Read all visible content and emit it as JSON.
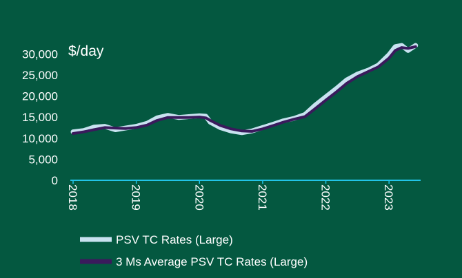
{
  "colors": {
    "background": "#045840",
    "axis_line": "#22c4e8",
    "series_primary": "#c8e2f0",
    "series_average": "#3a1a5c",
    "text": "#ffffff"
  },
  "chart_data": {
    "type": "line",
    "title": "",
    "unit_label": "$/day",
    "xlabel": "",
    "ylabel": "",
    "ylim": [
      0,
      32000
    ],
    "xlim": [
      2018.0,
      2023.5
    ],
    "y_ticks": [
      0,
      5000,
      10000,
      15000,
      20000,
      25000,
      30000
    ],
    "y_tick_labels": [
      "0",
      "5,000",
      "10,000",
      "15,000",
      "20,000",
      "25,000",
      "30,000"
    ],
    "x_ticks": [
      2018,
      2019,
      2020,
      2021,
      2022,
      2023
    ],
    "x_tick_labels": [
      "2018",
      "2019",
      "2020",
      "2021",
      "2022",
      "2023"
    ],
    "grid": false,
    "legend_placement": "bottom-left",
    "series": [
      {
        "name": "PSV TC Rates (Large)",
        "x": [
          2018.0,
          2018.17,
          2018.33,
          2018.5,
          2018.67,
          2018.83,
          2019.0,
          2019.17,
          2019.33,
          2019.5,
          2019.67,
          2019.83,
          2020.0,
          2020.1,
          2020.17,
          2020.33,
          2020.5,
          2020.67,
          2020.83,
          2021.0,
          2021.17,
          2021.33,
          2021.5,
          2021.67,
          2021.83,
          2022.0,
          2022.17,
          2022.33,
          2022.5,
          2022.67,
          2022.83,
          2023.0,
          2023.1,
          2023.2,
          2023.3,
          2023.42
        ],
        "y": [
          11500,
          11800,
          12600,
          12800,
          12000,
          12400,
          12800,
          13500,
          14800,
          15400,
          14900,
          15100,
          15300,
          15200,
          13800,
          12500,
          11700,
          11300,
          11700,
          12500,
          13300,
          14100,
          14700,
          15600,
          17800,
          19800,
          21800,
          23800,
          25200,
          26100,
          27300,
          29800,
          31700,
          32000,
          30800,
          32000
        ]
      },
      {
        "name": "3 Ms Average PSV TC Rates (Large)",
        "x": [
          2018.0,
          2018.17,
          2018.33,
          2018.5,
          2018.67,
          2018.83,
          2019.0,
          2019.17,
          2019.33,
          2019.5,
          2019.67,
          2019.83,
          2020.0,
          2020.1,
          2020.17,
          2020.33,
          2020.5,
          2020.67,
          2020.83,
          2021.0,
          2021.17,
          2021.33,
          2021.5,
          2021.67,
          2021.83,
          2022.0,
          2022.17,
          2022.33,
          2022.5,
          2022.67,
          2022.83,
          2023.0,
          2023.1,
          2023.2,
          2023.3,
          2023.42
        ],
        "y": [
          11100,
          11500,
          12000,
          12500,
          12400,
          12300,
          12500,
          13100,
          14200,
          14900,
          14900,
          14900,
          15000,
          14800,
          14200,
          13000,
          12200,
          11700,
          11600,
          12200,
          13000,
          13800,
          14500,
          15100,
          17000,
          19000,
          21000,
          23000,
          24600,
          25800,
          26900,
          29000,
          30800,
          31500,
          31300,
          31700
        ]
      }
    ]
  }
}
